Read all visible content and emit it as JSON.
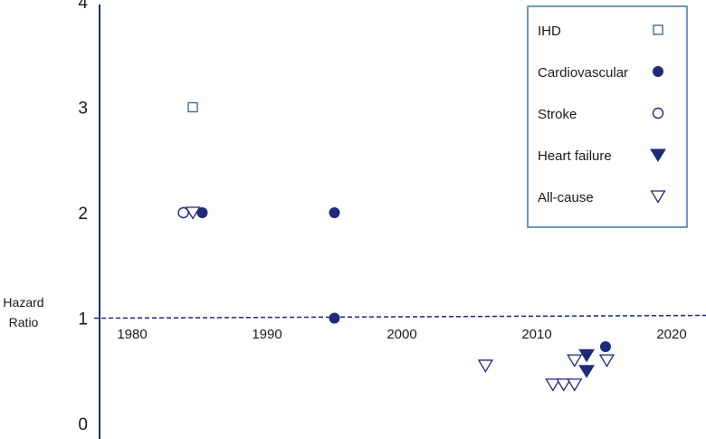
{
  "chart_data": {
    "type": "scatter",
    "ylabel": [
      "Hazard",
      "Ratio"
    ],
    "xlim": [
      1977,
      2022
    ],
    "ylim": [
      0,
      4
    ],
    "xticks": [
      "1980",
      "1990",
      "2000",
      "2010",
      "2020"
    ],
    "yticks": [
      "0",
      "1",
      "2",
      "3",
      "4"
    ],
    "reference_line": 1,
    "grid": false,
    "legend_position": "top-right",
    "colors": {
      "main": "#1f2a7a",
      "legend_border": "#4a7fb5",
      "ihd": "#4a6a8a"
    },
    "series": [
      {
        "name": "IHD",
        "marker": "open-square",
        "points": [
          {
            "x": 1984.5,
            "y": 3.0
          }
        ]
      },
      {
        "name": "Cardiovascular",
        "marker": "filled-circle",
        "points": [
          {
            "x": 1985.2,
            "y": 2.0
          },
          {
            "x": 1995,
            "y": 2.0
          },
          {
            "x": 1995,
            "y": 1.0
          },
          {
            "x": 2015.1,
            "y": 0.73
          }
        ]
      },
      {
        "name": "Stroke",
        "marker": "open-circle",
        "points": [
          {
            "x": 1983.8,
            "y": 2.0
          }
        ]
      },
      {
        "name": "Heart failure",
        "marker": "filled-triangle",
        "points": [
          {
            "x": 2013.7,
            "y": 0.65
          },
          {
            "x": 2013.7,
            "y": 0.5
          }
        ]
      },
      {
        "name": "All-cause",
        "marker": "open-triangle",
        "points": [
          {
            "x": 1984.5,
            "y": 2.0
          },
          {
            "x": 2006.2,
            "y": 0.55
          },
          {
            "x": 2011.2,
            "y": 0.37
          },
          {
            "x": 2012,
            "y": 0.37
          },
          {
            "x": 2012.8,
            "y": 0.37
          },
          {
            "x": 2012.8,
            "y": 0.6
          },
          {
            "x": 2015.2,
            "y": 0.6
          }
        ]
      }
    ]
  }
}
